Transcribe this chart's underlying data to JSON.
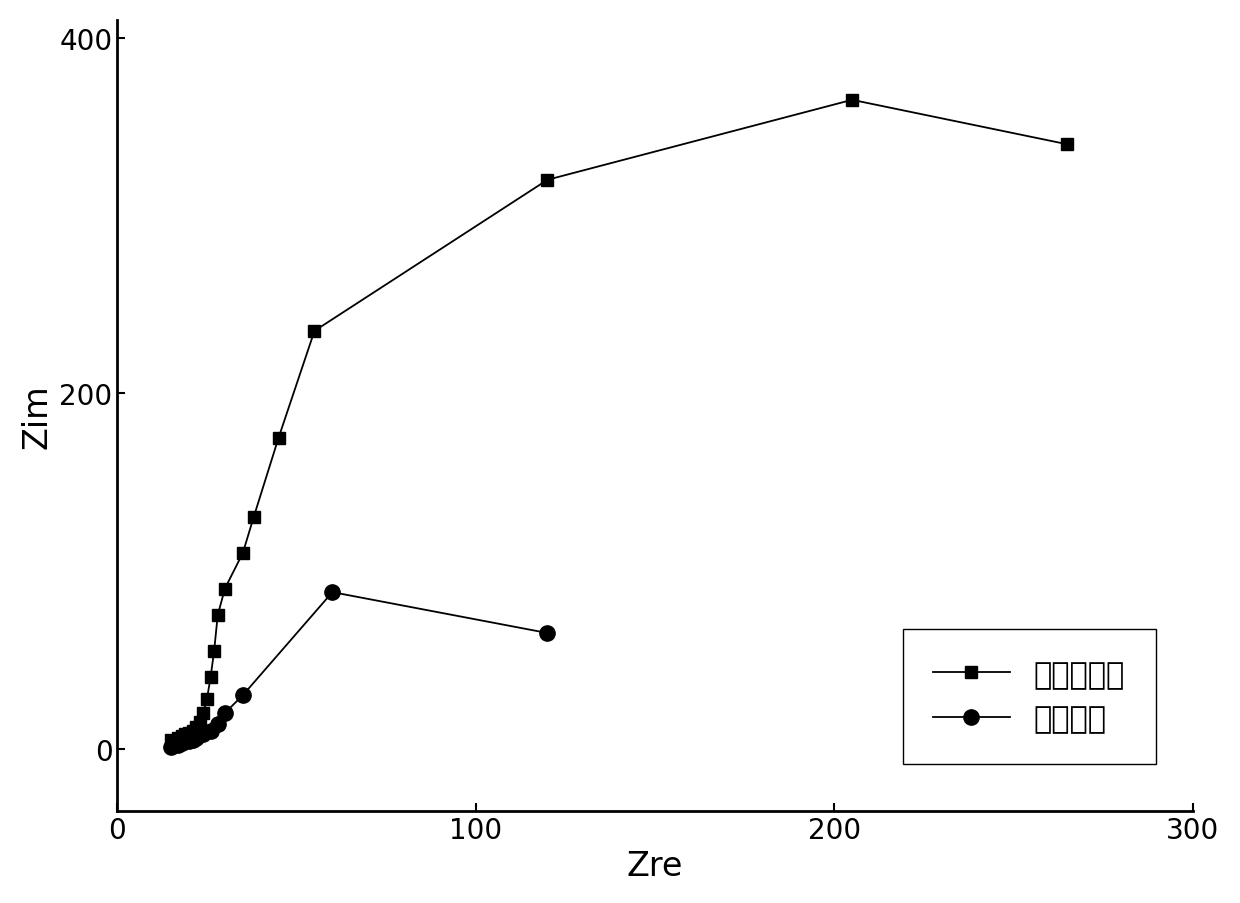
{
  "series1_label": "分子筛样品",
  "series2_label": "空白样品",
  "series1_x": [
    15,
    17,
    18,
    19,
    20,
    21,
    22,
    23,
    24,
    25,
    26,
    27,
    28,
    30,
    35,
    38,
    45,
    55,
    120,
    205,
    265
  ],
  "series1_y": [
    5,
    6,
    7,
    8,
    9,
    10,
    12,
    15,
    20,
    28,
    40,
    55,
    75,
    90,
    110,
    130,
    175,
    235,
    320,
    365,
    340
  ],
  "series2_x": [
    15,
    17,
    18,
    20,
    21,
    22,
    24,
    26,
    28,
    30,
    35,
    60,
    120
  ],
  "series2_y": [
    1,
    2,
    3,
    4,
    5,
    6,
    8,
    10,
    14,
    20,
    30,
    88,
    65
  ],
  "xlabel": "Zre",
  "ylabel": "Zim",
  "xlim": [
    0,
    300
  ],
  "ylim": [
    -35,
    410
  ],
  "xticks": [
    0,
    100,
    200,
    300
  ],
  "yticks": [
    0,
    200,
    400
  ],
  "background_color": "#ffffff",
  "line_color": "#000000",
  "marker_size_square": 9,
  "marker_size_circle": 11,
  "linewidth": 1.3,
  "xlabel_fontsize": 24,
  "ylabel_fontsize": 24,
  "tick_fontsize": 20,
  "legend_fontsize": 22
}
